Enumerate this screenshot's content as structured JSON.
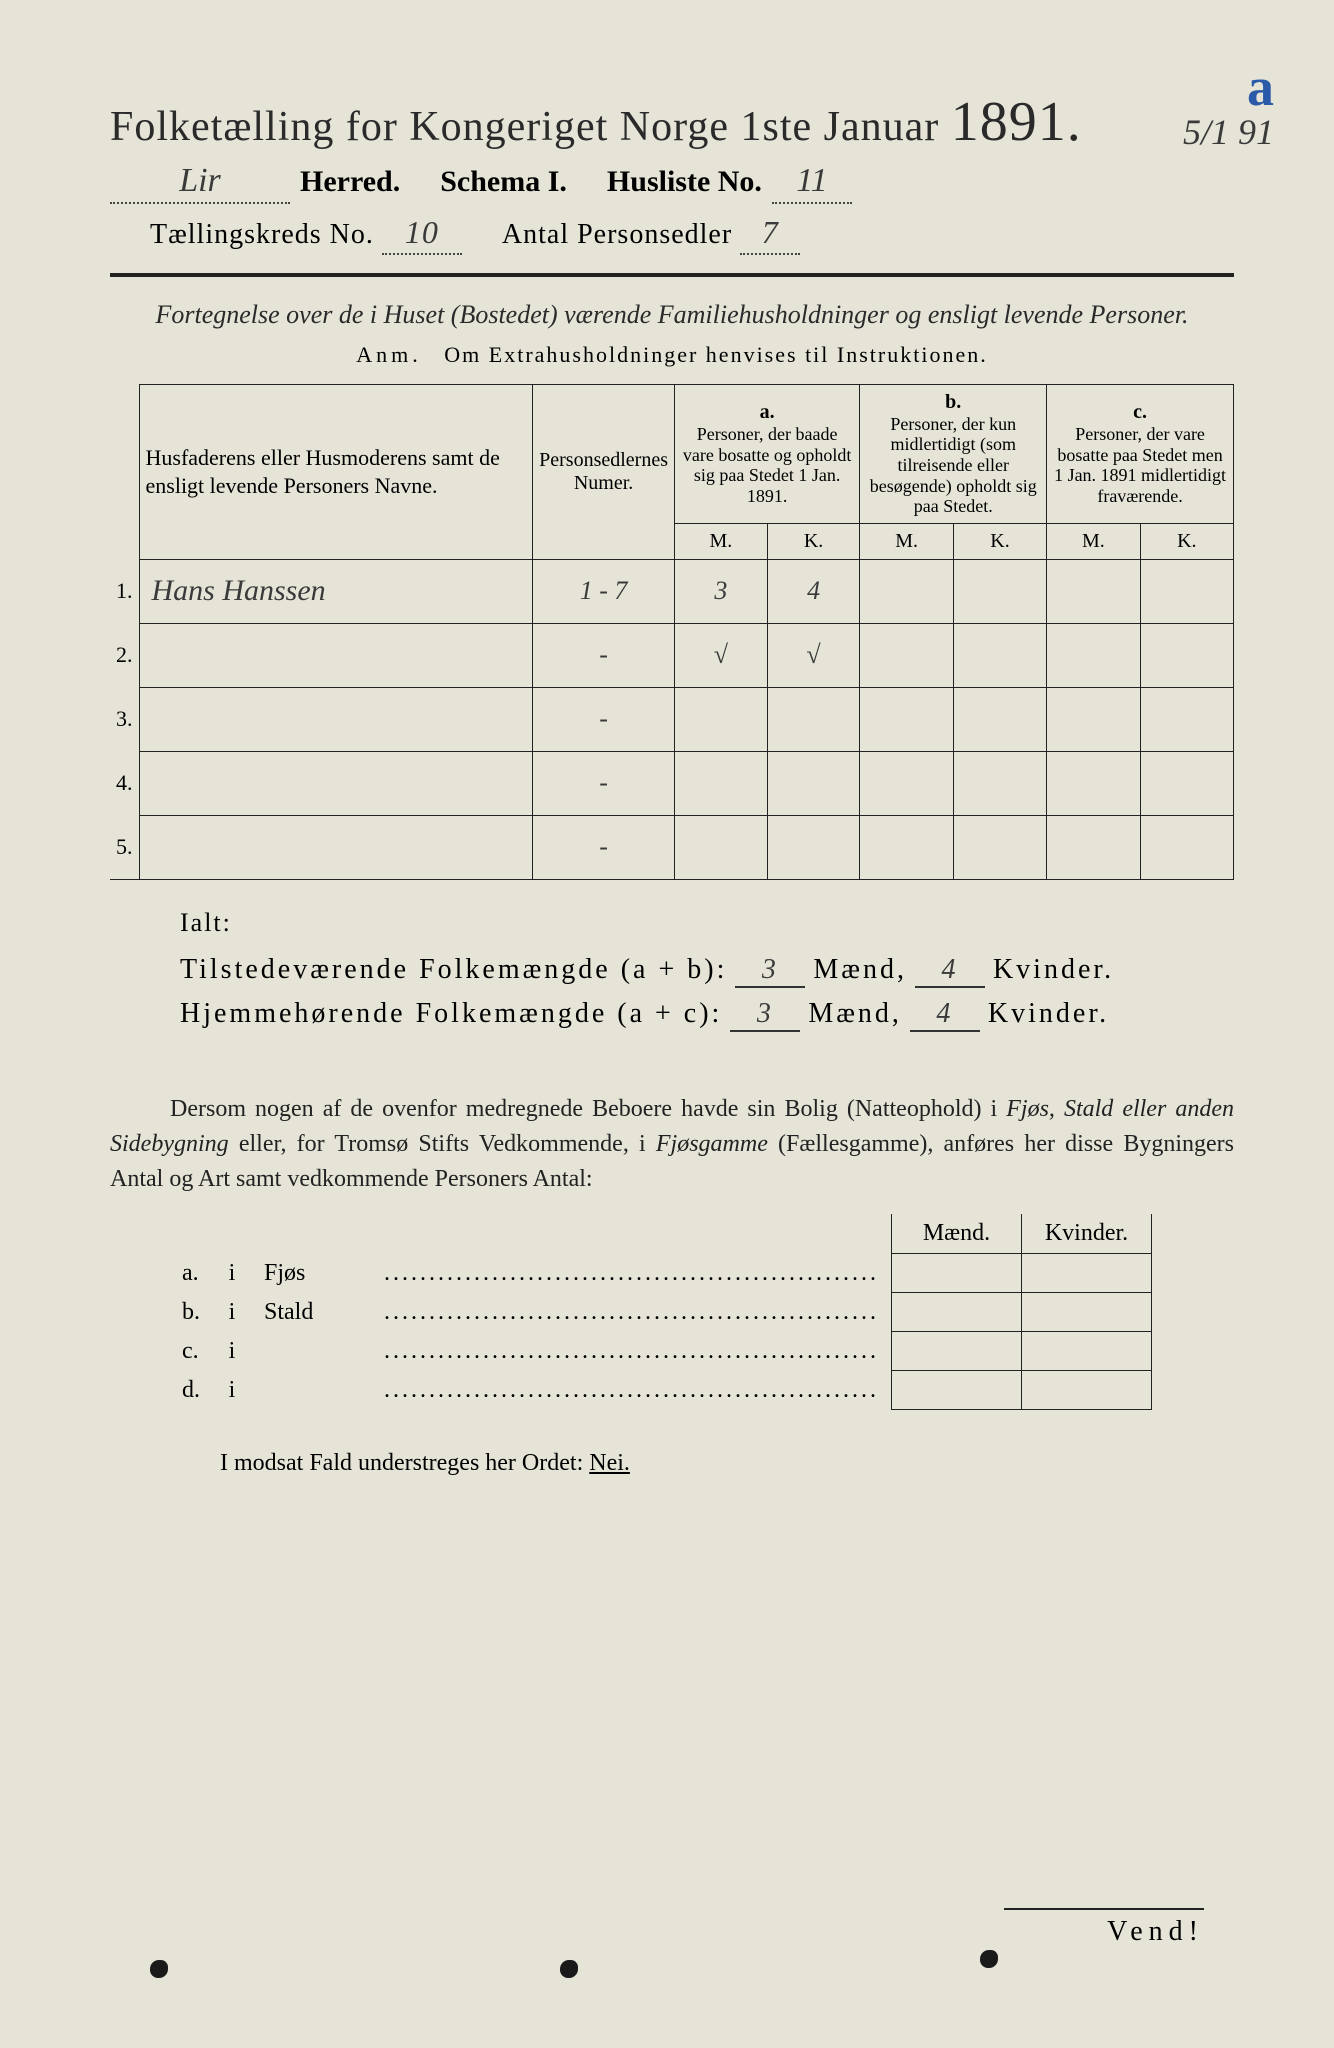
{
  "colors": {
    "paper": "#e6e3d7",
    "ink": "#2a2a2a",
    "rule": "#222222",
    "blue_ink": "#2a5aa8",
    "pencil": "#3a3a3a"
  },
  "header": {
    "main_title": "Folketælling for Kongeriget Norge 1ste Januar",
    "year": "1891.",
    "annot_a": "a",
    "annot_date": "5/1 91",
    "herred_value": "Lir",
    "herred_label": "Herred.",
    "schema_label": "Schema I.",
    "husliste_label": "Husliste No.",
    "husliste_value": "11",
    "kreds_label": "Tællingskreds No.",
    "kreds_value": "10",
    "antal_label": "Antal Personsedler",
    "antal_value": "7"
  },
  "subtitle": {
    "line": "Fortegnelse over de i Huset (Bostedet) værende Familiehusholdninger og ensligt levende Personer.",
    "anm_label": "Anm.",
    "anm_text": "Om Extrahusholdninger henvises til Instruktionen."
  },
  "table_head": {
    "col_name": "Husfaderens eller Husmoderens samt de ensligt levende Personers Navne.",
    "col_num": "Personsedlernes Numer.",
    "a_label": "a.",
    "a_text": "Personer, der baade vare bosatte og opholdt sig paa Stedet 1 Jan. 1891.",
    "b_label": "b.",
    "b_text": "Personer, der kun midlertidigt (som tilreisende eller besøgende) opholdt sig paa Stedet.",
    "c_label": "c.",
    "c_text": "Personer, der vare bosatte paa Stedet men 1 Jan. 1891 midlertidigt fraværende.",
    "M": "M.",
    "K": "K."
  },
  "rows": [
    {
      "n": "1.",
      "name": "Hans Hanssen",
      "num": "1 - 7",
      "aM": "3",
      "aK": "4",
      "bM": "",
      "bK": "",
      "cM": "",
      "cK": ""
    },
    {
      "n": "2.",
      "name": "",
      "num": "-",
      "aM": "√",
      "aK": "√",
      "bM": "",
      "bK": "",
      "cM": "",
      "cK": ""
    },
    {
      "n": "3.",
      "name": "",
      "num": "-",
      "aM": "",
      "aK": "",
      "bM": "",
      "bK": "",
      "cM": "",
      "cK": ""
    },
    {
      "n": "4.",
      "name": "",
      "num": "-",
      "aM": "",
      "aK": "",
      "bM": "",
      "bK": "",
      "cM": "",
      "cK": ""
    },
    {
      "n": "5.",
      "name": "",
      "num": "-",
      "aM": "",
      "aK": "",
      "bM": "",
      "bK": "",
      "cM": "",
      "cK": ""
    }
  ],
  "totals": {
    "ialt": "Ialt:",
    "present_label": "Tilstedeværende Folkemængde (a + b):",
    "resident_label": "Hjemmehørende Folkemængde (a + c):",
    "maend": "Mænd,",
    "kvinder": "Kvinder.",
    "present_m": "3",
    "present_k": "4",
    "resident_m": "3",
    "resident_k": "4"
  },
  "paragraph": {
    "text1": "Dersom nogen af de ovenfor medregnede Beboere havde sin Bolig (Natteophold) i ",
    "ital1": "Fjøs, Stald eller anden Sidebygning",
    "text2": " eller, for Tromsø Stifts Vedkommende, i ",
    "ital2": "Fjøsgamme",
    "text3": " (Fællesgamme), anføres her disse Bygningers Antal og Art samt vedkommende Personers Antal:"
  },
  "mk": {
    "maend": "Mænd.",
    "kvinder": "Kvinder.",
    "rows": [
      {
        "label": "a.",
        "word": "Fjøs"
      },
      {
        "label": "b.",
        "word": "Stald"
      },
      {
        "label": "c.",
        "word": ""
      },
      {
        "label": "d.",
        "word": ""
      }
    ],
    "i": "i",
    "dots": "......................................................."
  },
  "nei": {
    "text": "I modsat Fald understreges her Ordet: ",
    "word": "Nei."
  },
  "vend": "Vend!"
}
